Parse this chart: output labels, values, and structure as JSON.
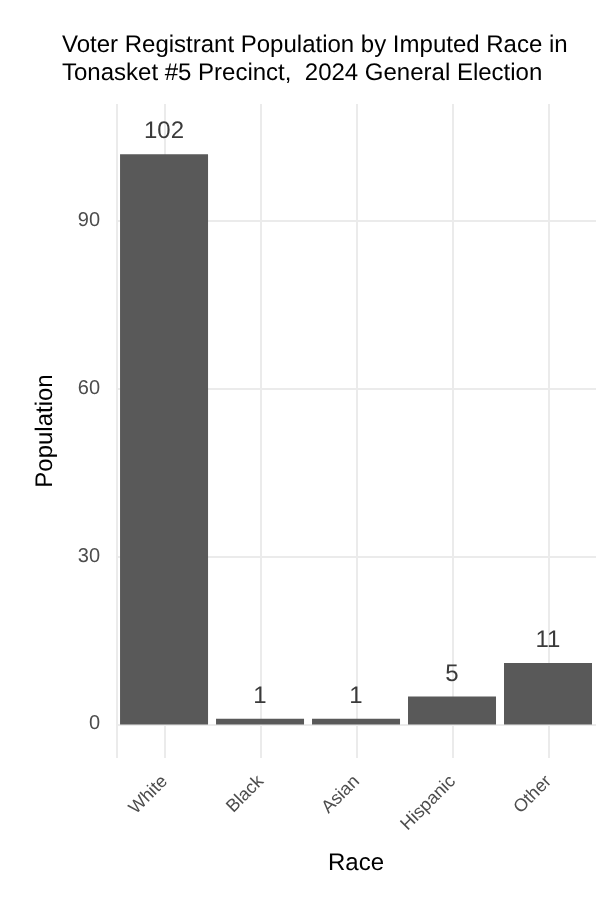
{
  "chart_data": {
    "type": "bar",
    "title": "Voter Registrant Population by Imputed Race in\nTonasket #5 Precinct,  2024 General Election",
    "xlabel": "Race",
    "ylabel": "Population",
    "categories": [
      "White",
      "Black",
      "Asian",
      "Hispanic",
      "Other"
    ],
    "values": [
      102,
      1,
      1,
      5,
      11
    ],
    "color": "#595959",
    "data_labels": true,
    "ylim": [
      -6,
      111
    ],
    "yticks": [
      0,
      30,
      60,
      90
    ],
    "grid": true
  }
}
